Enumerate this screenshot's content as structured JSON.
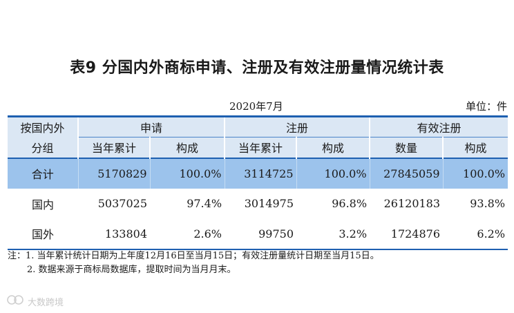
{
  "title": "表9 分国内外商标申请、注册及有效注册量情况统计表",
  "date": "2020年7月",
  "unit": "单位：件",
  "table": {
    "corner_line1": "按国内外",
    "corner_line2": "分组",
    "groups": [
      "申请",
      "注册",
      "有效注册"
    ],
    "subheaders": [
      "当年累计",
      "构成",
      "当年累计",
      "构成",
      "数量",
      "构成"
    ],
    "rows": [
      {
        "label": "合计",
        "values": [
          "5170829",
          "100.0%",
          "3114725",
          "100.0%",
          "27845059",
          "100.0%"
        ]
      },
      {
        "label": "国内",
        "values": [
          "5037025",
          "97.4%",
          "3014975",
          "96.8%",
          "26120183",
          "93.8%"
        ]
      },
      {
        "label": "国外",
        "values": [
          "133804",
          "2.6%",
          "99750",
          "3.2%",
          "1724876",
          "6.2%"
        ]
      }
    ]
  },
  "notes": [
    "注：1. 当年累计统计日期为上年度12月16日至当月15日；有效注册量统计日期至当月15日。",
    "2. 数据来源于商标局数据库，提取时间为当月月末。"
  ],
  "watermark": "大数跨境",
  "watermark_icon": "logo-mark-icon",
  "colors": {
    "header_bg": "#dbe7f4",
    "total_row_bg": "#9cc3ec",
    "rule": "#1d5fb0"
  }
}
